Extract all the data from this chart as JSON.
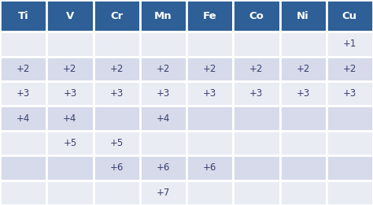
{
  "headers": [
    "Ti",
    "V",
    "Cr",
    "Mn",
    "Fe",
    "Co",
    "Ni",
    "Cu"
  ],
  "header_bg": "#2e5f96",
  "header_text_color": "#ffffff",
  "rows": [
    [
      "",
      "",
      "",
      "",
      "",
      "",
      "",
      "+1"
    ],
    [
      "+2",
      "+2",
      "+2",
      "+2",
      "+2",
      "+2",
      "+2",
      "+2"
    ],
    [
      "+3",
      "+3",
      "+3",
      "+3",
      "+3",
      "+3",
      "+3",
      "+3"
    ],
    [
      "+4",
      "+4",
      "",
      "+4",
      "",
      "",
      "",
      ""
    ],
    [
      "",
      "+5",
      "+5",
      "",
      "",
      "",
      "",
      ""
    ],
    [
      "",
      "",
      "+6",
      "+6",
      "+6",
      "",
      "",
      ""
    ],
    [
      "",
      "",
      "",
      "+7",
      "",
      "",
      "",
      ""
    ]
  ],
  "row_colors": [
    "#eaecf4",
    "#d6daea",
    "#eaecf4",
    "#d6daea",
    "#eaecf4",
    "#d6daea",
    "#eaecf4"
  ],
  "text_color": "#3a3f6e",
  "font_size": 8.5,
  "header_font_size": 9.5,
  "border_color": "#ffffff",
  "border_lw": 2.0,
  "figsize": [
    4.74,
    2.6
  ],
  "dpi": 100
}
